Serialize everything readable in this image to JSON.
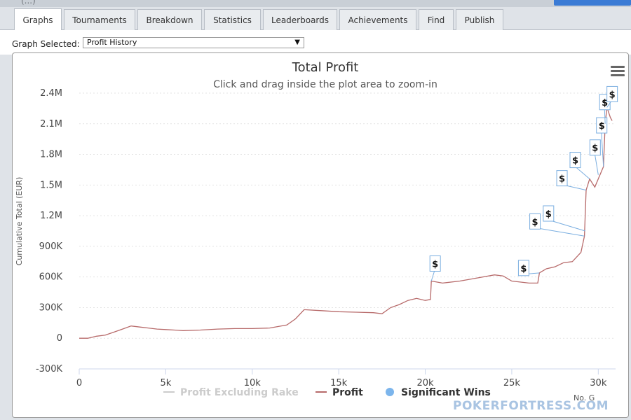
{
  "header": {
    "partial_title": "(...)"
  },
  "tabs": [
    "Graphs",
    "Tournaments",
    "Breakdown",
    "Statistics",
    "Leaderboards",
    "Achievements",
    "Find",
    "Publish"
  ],
  "active_tab": "Graphs",
  "selector": {
    "label": "Graph Selected:",
    "value": "Profit History"
  },
  "watermark": "POKERFORTRESS.COM",
  "chart_data": {
    "type": "line",
    "title": "Total Profit",
    "subtitle": "Click and drag inside the plot area to zoom-in",
    "ylabel": "Cumulative Total (EUR)",
    "xlabel": "No. G",
    "ylim": [
      -300000,
      2400000
    ],
    "xlim": [
      0,
      31000
    ],
    "grid": true,
    "legend_position": "bottom",
    "y_ticks": [
      {
        "value": 2400000,
        "label": "2.4M"
      },
      {
        "value": 2100000,
        "label": "2.1M"
      },
      {
        "value": 1800000,
        "label": "1.8M"
      },
      {
        "value": 1500000,
        "label": "1.5M"
      },
      {
        "value": 1200000,
        "label": "1.2M"
      },
      {
        "value": 900000,
        "label": "900K"
      },
      {
        "value": 600000,
        "label": "600K"
      },
      {
        "value": 300000,
        "label": "300K"
      },
      {
        "value": 0,
        "label": "0"
      },
      {
        "value": -300000,
        "label": "-300K"
      }
    ],
    "x_ticks": [
      {
        "value": 0,
        "label": "0"
      },
      {
        "value": 5000,
        "label": "5k"
      },
      {
        "value": 10000,
        "label": "10k"
      },
      {
        "value": 15000,
        "label": "15k"
      },
      {
        "value": 20000,
        "label": "20k"
      },
      {
        "value": 25000,
        "label": "25k"
      },
      {
        "value": 30000,
        "label": "30k"
      }
    ],
    "legend": [
      {
        "name": "Profit Excluding Rake",
        "color": "#cccccc",
        "marker": "line"
      },
      {
        "name": "Profit",
        "color": "#b76a6a",
        "marker": "line"
      },
      {
        "name": "Significant Wins",
        "color": "#7cb5ec",
        "marker": "circle"
      }
    ],
    "series": [
      {
        "name": "Profit",
        "color": "#b76a6a",
        "points": [
          [
            0,
            0
          ],
          [
            500,
            0
          ],
          [
            1000,
            20000
          ],
          [
            1500,
            30000
          ],
          [
            2000,
            60000
          ],
          [
            2500,
            90000
          ],
          [
            3000,
            120000
          ],
          [
            3500,
            110000
          ],
          [
            4000,
            100000
          ],
          [
            4500,
            90000
          ],
          [
            5000,
            85000
          ],
          [
            5500,
            80000
          ],
          [
            6000,
            75000
          ],
          [
            7000,
            80000
          ],
          [
            8000,
            90000
          ],
          [
            9000,
            95000
          ],
          [
            10000,
            95000
          ],
          [
            11000,
            100000
          ],
          [
            12000,
            130000
          ],
          [
            12500,
            190000
          ],
          [
            13000,
            280000
          ],
          [
            14000,
            270000
          ],
          [
            15000,
            260000
          ],
          [
            16000,
            255000
          ],
          [
            17000,
            250000
          ],
          [
            17500,
            240000
          ],
          [
            18000,
            300000
          ],
          [
            18500,
            330000
          ],
          [
            19000,
            370000
          ],
          [
            19500,
            390000
          ],
          [
            20000,
            370000
          ],
          [
            20300,
            380000
          ],
          [
            20350,
            560000
          ],
          [
            21000,
            540000
          ],
          [
            22000,
            560000
          ],
          [
            23000,
            590000
          ],
          [
            24000,
            620000
          ],
          [
            24500,
            610000
          ],
          [
            25000,
            560000
          ],
          [
            26000,
            540000
          ],
          [
            26500,
            540000
          ],
          [
            26600,
            640000
          ],
          [
            27000,
            680000
          ],
          [
            27500,
            700000
          ],
          [
            28000,
            740000
          ],
          [
            28500,
            750000
          ],
          [
            29000,
            840000
          ],
          [
            29200,
            1000000
          ],
          [
            29300,
            1450000
          ],
          [
            29500,
            1560000
          ],
          [
            29800,
            1480000
          ],
          [
            30000,
            1560000
          ],
          [
            30300,
            1680000
          ],
          [
            30400,
            2100000
          ],
          [
            30500,
            2260000
          ],
          [
            30700,
            2160000
          ],
          [
            30800,
            2130000
          ]
        ]
      }
    ],
    "significant_wins": [
      {
        "x": 20350,
        "y": 560000,
        "label": "$"
      },
      {
        "x": 26600,
        "y": 640000,
        "label": "$"
      },
      {
        "x": 29200,
        "y": 1000000,
        "label": "$"
      },
      {
        "x": 29250,
        "y": 1050000,
        "label": "$"
      },
      {
        "x": 29300,
        "y": 1450000,
        "label": "$"
      },
      {
        "x": 29500,
        "y": 1560000,
        "label": "$"
      },
      {
        "x": 30000,
        "y": 1600000,
        "label": "$"
      },
      {
        "x": 30300,
        "y": 1680000,
        "label": "$"
      },
      {
        "x": 30400,
        "y": 2100000,
        "label": "$"
      },
      {
        "x": 30500,
        "y": 2260000,
        "label": "$"
      }
    ]
  }
}
